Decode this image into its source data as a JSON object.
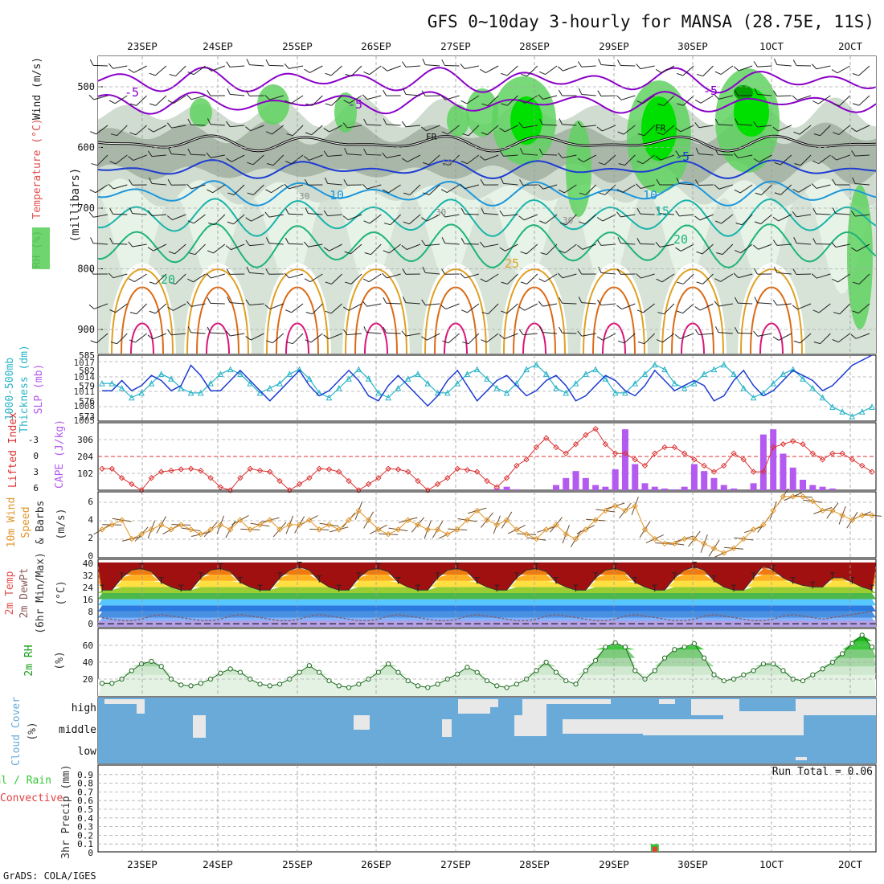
{
  "title": "GFS 0~10day 3-hourly for MANSA (28.75E, 11S)",
  "footer": "GrADS: COLA/IGES",
  "dates": [
    "23SEP",
    "24SEP",
    "25SEP",
    "26SEP",
    "27SEP",
    "28SEP",
    "29SEP",
    "30SEP",
    "1OCT",
    "2OCT"
  ],
  "colors": {
    "rh_light": "#e6f3e6",
    "rh_mid": "#cfdccf",
    "rh_gray": "#a9b7a9",
    "rh_green": "#5fd25f",
    "rh_bright": "#00e000",
    "rh_dark": "#00a000",
    "temp_purple": "#8a00c8",
    "freezing": "#000000",
    "temp_blue": "#1e3cd2",
    "temp_lightblue": "#1e96dc",
    "temp_teal": "#18b4aa",
    "temp_green": "#1eb478",
    "temp_orange": "#e0a020",
    "temp_darkorange": "#dc6a14",
    "temp_magenta": "#dc1478",
    "slp": "#1e3cd2",
    "thickness": "#28b4c8",
    "lifted": "#dc3232",
    "cape": "#b45af0",
    "wind_speed": "#e0962a",
    "barb": "#6a4a2a",
    "dewpt": "#8c5a5a",
    "rh2m": "#19a019",
    "cloud": "#6aaad8",
    "cloud_gap": "#e8e8e8",
    "precip_total": "#32c832",
    "precip_conv": "#e04040"
  },
  "panels": {
    "upper": {
      "ylabels": [
        {
          "text": "RH (%)",
          "color": "#111111"
        },
        {
          "text": "Temperature (°C)",
          "color": "#e05050"
        },
        {
          "text": "Wind (m/s)",
          "color": "#222222"
        },
        {
          "text": "(millibars)",
          "color": "#222222"
        }
      ],
      "ticks": [
        "500",
        "600",
        "700",
        "800",
        "900"
      ],
      "contour_labels": [
        "-5",
        "-5",
        "-5",
        "FR",
        "FR",
        "-5",
        "10",
        "10",
        "15",
        "20",
        "20",
        "25",
        "30",
        "30",
        "30",
        "50"
      ]
    },
    "slp": {
      "ylabel_left": "1000-500mb",
      "ylabel_left2": "Thickness (dm)",
      "ylabel_right": "SLP (mb)",
      "left_ticks": [
        "585",
        "582",
        "579",
        "576",
        "573"
      ],
      "right_ticks": [
        "1017",
        "1014",
        "1011",
        "1008",
        "1005"
      ]
    },
    "cape": {
      "ylabel_left": "Lifted Index",
      "ylabel_right": "CAPE (J/kg)",
      "left_ticks": [
        "-3",
        "0",
        "3",
        "6"
      ],
      "right_ticks": [
        "306",
        "204",
        "102"
      ]
    },
    "wind": {
      "ylabel1": "10m Wind",
      "ylabel2": "Speed",
      "ylabel3": "& Barbs",
      "ylabel4": "(m/s)",
      "ticks": [
        "6",
        "4",
        "2",
        "0"
      ]
    },
    "temp": {
      "ylabel1": "2m Temp",
      "ylabel2": "2m DewPt",
      "ylabel3": "(6hr Min/Max)",
      "ylabel4": "(°C)",
      "ticks": [
        "40",
        "32",
        "24",
        "16",
        "8",
        "0"
      ]
    },
    "rh": {
      "ylabel1": "2m RH",
      "ylabel2": "(%)",
      "ticks": [
        "60",
        "40",
        "20"
      ]
    },
    "cloud": {
      "ylabel1": "Cloud Cover",
      "ylabel2": "(%)",
      "levels": [
        "high",
        "middle",
        "low"
      ]
    },
    "precip": {
      "ylabel1": "Total / Rain",
      "ylabel2": "Convective",
      "ylabel3": "3hr Precip (mm)",
      "ticks": [
        "0.8",
        "0.6",
        "0.4",
        "0.2",
        "0"
      ],
      "ticks_extra": [
        "0.9",
        "0.7",
        "0.5",
        "0.3",
        "0.1"
      ],
      "run_total": "Run Total = 0.06"
    }
  },
  "chart_data": {
    "type": "line",
    "note_axis": "x axis is forecast time, 3-hourly steps",
    "x_dates": [
      "23SEP",
      "24SEP",
      "25SEP",
      "26SEP",
      "27SEP",
      "28SEP",
      "29SEP",
      "30SEP",
      "1OCT",
      "2OCT"
    ],
    "slp_mb": [
      1011,
      1011,
      1013,
      1011,
      1012,
      1014,
      1013,
      1011,
      1012,
      1016,
      1014,
      1011,
      1011,
      1013,
      1015,
      1013,
      1011,
      1009,
      1011,
      1013,
      1015,
      1012,
      1010,
      1011,
      1013,
      1015,
      1013,
      1010,
      1009,
      1012,
      1014,
      1012,
      1010,
      1008,
      1010,
      1013,
      1015,
      1012,
      1009,
      1011,
      1013,
      1014,
      1012,
      1010,
      1011,
      1013,
      1014,
      1012,
      1009,
      1010,
      1012,
      1014,
      1013,
      1011,
      1010,
      1012,
      1015,
      1013,
      1011,
      1012,
      1013,
      1012,
      1009,
      1010,
      1013,
      1015,
      1012,
      1010,
      1011,
      1013,
      1015,
      1014,
      1013,
      1011,
      1012,
      1014,
      1016,
      1017,
      1018
    ],
    "thickness_dm": [
      580,
      580,
      579,
      577,
      578,
      580,
      582,
      581,
      579,
      578,
      578,
      580,
      582,
      583,
      582,
      580,
      578,
      579,
      580,
      582,
      583,
      581,
      578,
      577,
      579,
      581,
      583,
      581,
      578,
      577,
      579,
      581,
      582,
      580,
      578,
      578,
      580,
      582,
      583,
      581,
      579,
      578,
      580,
      583,
      584,
      582,
      579,
      578,
      580,
      582,
      583,
      581,
      578,
      578,
      580,
      582,
      584,
      583,
      580,
      579,
      580,
      582,
      583,
      584,
      582,
      579,
      577,
      578,
      580,
      582,
      583,
      581,
      579,
      577,
      575,
      574,
      573,
      574,
      575
    ],
    "lifted_index": [
      2.5,
      2.5,
      4,
      5,
      6,
      4,
      3,
      2.8,
      2.6,
      2.5,
      2.8,
      4,
      5.5,
      6,
      4,
      2.5,
      2.8,
      3,
      4.5,
      6,
      5,
      4,
      2.5,
      2.6,
      3,
      4.5,
      6,
      5,
      4,
      2.5,
      2.6,
      3,
      4.5,
      6,
      5,
      4,
      2.5,
      2.7,
      3,
      4.5,
      5.5,
      4,
      2,
      1,
      -1,
      -2.5,
      -1,
      0,
      -1.5,
      -3,
      -4,
      -1.5,
      0,
      0,
      1,
      2,
      0,
      -1,
      -1,
      0,
      1,
      2,
      3,
      2,
      0,
      1,
      3,
      3,
      -1,
      -1.5,
      -2,
      -1.5,
      0,
      1,
      0,
      0,
      1,
      2,
      3
    ],
    "cape_jkg": [
      0,
      0,
      0,
      0,
      0,
      0,
      0,
      0,
      0,
      0,
      0,
      0,
      0,
      0,
      0,
      0,
      0,
      0,
      0,
      0,
      0,
      0,
      0,
      0,
      0,
      0,
      0,
      0,
      0,
      0,
      0,
      0,
      0,
      0,
      0,
      0,
      0,
      0,
      0,
      0,
      10,
      20,
      5,
      0,
      0,
      0,
      30,
      70,
      110,
      70,
      30,
      20,
      120,
      350,
      150,
      40,
      20,
      10,
      5,
      20,
      150,
      110,
      70,
      30,
      10,
      0,
      40,
      320,
      350,
      210,
      130,
      60,
      30,
      20,
      10,
      0,
      0,
      0,
      0
    ],
    "wind_speed_ms": [
      3,
      3.5,
      4,
      2,
      2.5,
      3,
      3.5,
      3,
      3.5,
      3,
      2.5,
      3,
      3.5,
      3,
      4,
      3,
      3.5,
      4,
      3,
      3.5,
      3.5,
      4,
      3,
      3.5,
      3,
      4,
      5,
      4,
      3,
      2.5,
      3,
      4,
      3.5,
      3,
      3,
      2.5,
      3,
      4,
      5,
      4,
      3.5,
      4,
      3,
      2.5,
      2,
      3,
      3.5,
      2.5,
      2,
      3,
      4,
      5,
      5.5,
      5,
      5.5,
      3,
      2,
      1.5,
      1.5,
      2,
      2,
      1.5,
      1,
      0.5,
      1,
      2,
      3,
      3.5,
      5,
      6.5,
      6.5,
      6.5,
      6,
      5,
      5,
      4.5,
      4,
      4.5,
      4.5
    ],
    "temp_max_c": [
      22,
      22,
      30,
      35,
      36,
      34,
      27,
      24,
      22,
      22,
      30,
      35,
      36,
      34,
      27,
      24,
      22,
      22,
      30,
      35,
      37,
      35,
      28,
      24,
      22,
      22,
      30,
      35,
      36,
      34,
      27,
      24,
      22,
      22,
      30,
      35,
      36,
      34,
      27,
      24,
      22,
      22,
      30,
      35,
      36,
      34,
      27,
      24,
      22,
      22,
      30,
      35,
      36,
      34,
      27,
      24,
      22,
      22,
      30,
      35,
      37,
      35,
      28,
      24,
      22,
      22,
      30,
      38,
      35,
      30,
      27,
      25,
      24,
      24,
      30,
      30,
      27,
      24,
      22
    ],
    "dewpt_c": [
      4,
      3,
      2,
      2,
      3,
      5,
      6,
      5,
      4,
      3,
      2,
      2,
      3,
      5,
      6,
      5,
      4,
      3,
      2,
      2,
      3,
      5,
      6,
      5,
      4,
      3,
      2,
      2,
      3,
      5,
      6,
      5,
      4,
      3,
      2,
      2,
      3,
      5,
      6,
      5,
      4,
      3,
      2,
      2,
      3,
      5,
      6,
      5,
      4,
      3,
      2,
      2,
      3,
      5,
      6,
      5,
      4,
      3,
      2,
      2,
      3,
      5,
      6,
      5,
      4,
      3,
      2,
      2,
      3,
      5,
      6,
      5,
      4,
      3,
      4,
      5,
      6,
      7,
      8
    ],
    "rh2m_pct": [
      15,
      15,
      20,
      30,
      38,
      41,
      35,
      20,
      13,
      12,
      15,
      20,
      27,
      32,
      28,
      20,
      14,
      12,
      14,
      20,
      28,
      36,
      28,
      18,
      12,
      10,
      14,
      20,
      28,
      38,
      28,
      18,
      12,
      10,
      14,
      20,
      26,
      34,
      28,
      18,
      12,
      10,
      14,
      20,
      30,
      40,
      28,
      18,
      14,
      30,
      42,
      58,
      63,
      58,
      30,
      20,
      30,
      45,
      55,
      58,
      62,
      45,
      25,
      18,
      20,
      25,
      30,
      38,
      38,
      30,
      20,
      18,
      25,
      32,
      40,
      50,
      62,
      72,
      58
    ],
    "cloud_high_gap": [
      3,
      3,
      2,
      1,
      1,
      1,
      0,
      0,
      0,
      0,
      0,
      0,
      0,
      0,
      0,
      0,
      0,
      0,
      0,
      0,
      0,
      0,
      0,
      0,
      0,
      0,
      0,
      0,
      0,
      0,
      0,
      0,
      0,
      0,
      0,
      0,
      0,
      0,
      0,
      0,
      0,
      0,
      0,
      0,
      0,
      0,
      0,
      0,
      0,
      0,
      0,
      0,
      0,
      0,
      0,
      0,
      0,
      0,
      0,
      0,
      0,
      0,
      0,
      0,
      0,
      0,
      0,
      0,
      0,
      0,
      0,
      0,
      0,
      0,
      0,
      0,
      0,
      0,
      0
    ],
    "precip_total_mm": [
      0,
      0,
      0,
      0,
      0,
      0,
      0,
      0,
      0,
      0,
      0,
      0,
      0,
      0,
      0,
      0,
      0,
      0,
      0,
      0,
      0,
      0,
      0,
      0,
      0,
      0,
      0,
      0,
      0,
      0,
      0,
      0,
      0,
      0,
      0,
      0,
      0,
      0,
      0,
      0,
      0,
      0,
      0,
      0,
      0,
      0,
      0,
      0,
      0,
      0,
      0,
      0,
      0,
      0,
      0,
      0,
      0.06,
      0,
      0,
      0,
      0,
      0,
      0,
      0,
      0,
      0,
      0,
      0,
      0,
      0,
      0,
      0,
      0,
      0,
      0,
      0,
      0,
      0,
      0
    ],
    "precip_conv_mm": [
      0,
      0,
      0,
      0,
      0,
      0,
      0,
      0,
      0,
      0,
      0,
      0,
      0,
      0,
      0,
      0,
      0,
      0,
      0,
      0,
      0,
      0,
      0,
      0,
      0,
      0,
      0,
      0,
      0,
      0,
      0,
      0,
      0,
      0,
      0,
      0,
      0,
      0,
      0,
      0,
      0,
      0,
      0,
      0,
      0,
      0,
      0,
      0,
      0,
      0,
      0,
      0,
      0,
      0,
      0,
      0,
      0.05,
      0,
      0,
      0,
      0,
      0,
      0,
      0,
      0,
      0,
      0,
      0,
      0,
      0,
      0,
      0,
      0,
      0,
      0,
      0,
      0,
      0,
      0
    ]
  }
}
